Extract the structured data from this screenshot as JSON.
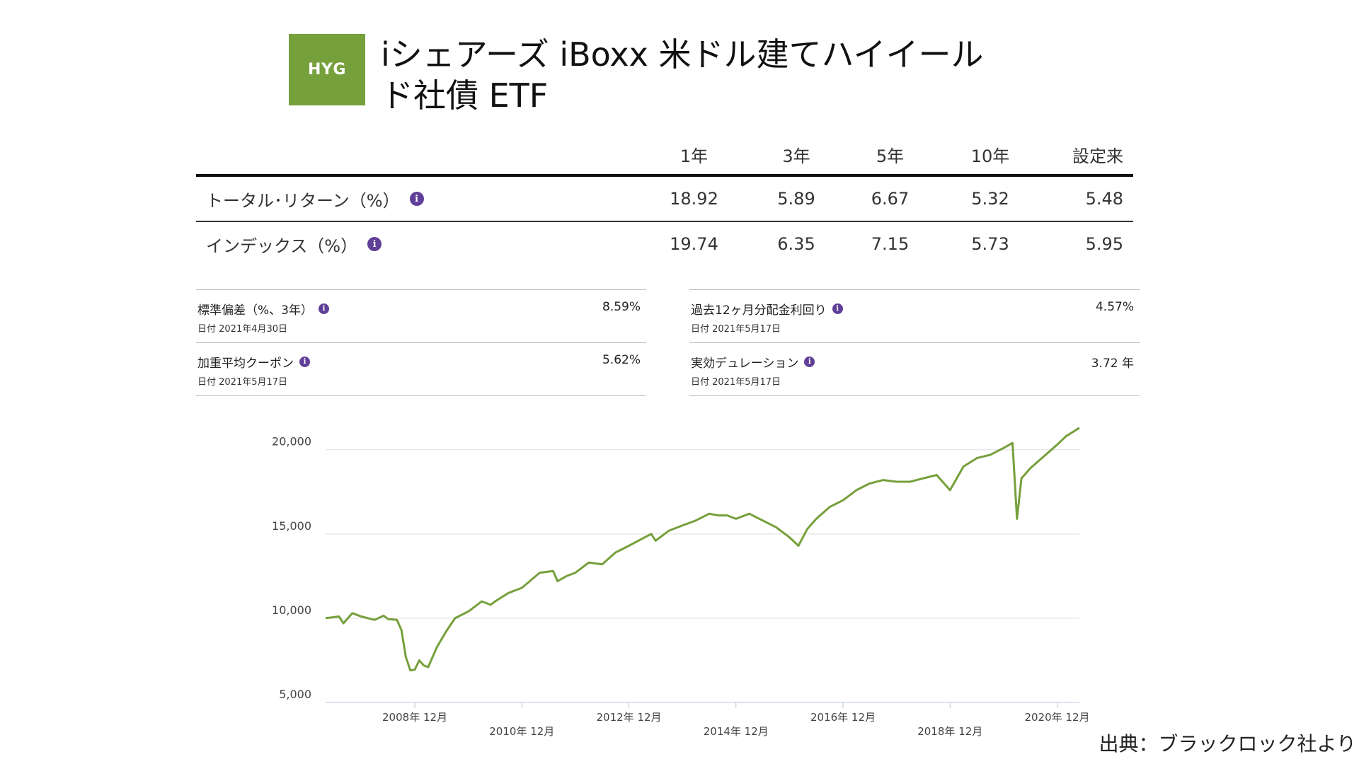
{
  "fund": {
    "ticker": "HYG",
    "title": "iシェアーズ iBoxx 米ドル建てハイイールド社債 ETF",
    "brand_color": "#76a03c"
  },
  "performance": {
    "headers": [
      "1年",
      "3年",
      "5年",
      "10年",
      "設定来"
    ],
    "rows": [
      {
        "label": "トータル･リターン（%）",
        "values": [
          "18.92",
          "5.89",
          "6.67",
          "5.32",
          "5.48"
        ]
      },
      {
        "label": "インデックス（%）",
        "values": [
          "19.74",
          "6.35",
          "7.15",
          "5.73",
          "5.95"
        ]
      }
    ],
    "info_icon": "info-icon",
    "info_color": "#5f3f97"
  },
  "stats": {
    "left": [
      {
        "label": "標準偏差（%、3年）",
        "date": "日付 2021年4月30日",
        "value": "8.59%"
      },
      {
        "label": "加重平均クーポン",
        "date": "日付 2021年5月17日",
        "value": "5.62%"
      }
    ],
    "right": [
      {
        "label": "過去12ヶ月分配金利回り",
        "date": "日付 2021年5月17日",
        "value": "4.57%"
      },
      {
        "label": "実効デュレーション",
        "date": "日付 2021年5月17日",
        "value": "3.72 年"
      }
    ]
  },
  "chart_data": {
    "type": "line",
    "title": "",
    "xlabel": "",
    "ylabel": "",
    "ylim": [
      5000,
      21500
    ],
    "y_ticks": [
      5000,
      10000,
      15000,
      20000
    ],
    "y_tick_labels": [
      "5,000",
      "10,000",
      "15,000",
      "20,000"
    ],
    "x_range": [
      "2007-04",
      "2021-05"
    ],
    "x_ticks": [
      "2008-12",
      "2010-12",
      "2012-12",
      "2014-12",
      "2016-12",
      "2018-12",
      "2020-12"
    ],
    "x_tick_labels": [
      "2008年 12月",
      "2010年 12月",
      "2012年 12月",
      "2014年 12月",
      "2016年 12月",
      "2018年 12月",
      "2020年 12月"
    ],
    "grid": true,
    "line_color": "#76a03c",
    "series": [
      {
        "x": [
          "2007-04",
          "2007-07",
          "2007-08",
          "2007-10",
          "2007-12",
          "2008-03",
          "2008-05",
          "2008-06",
          "2008-08",
          "2008-09",
          "2008-10",
          "2008-11",
          "2008-12",
          "2009-01",
          "2009-02",
          "2009-03",
          "2009-05",
          "2009-07",
          "2009-09",
          "2009-12",
          "2010-03",
          "2010-05",
          "2010-06",
          "2010-09",
          "2010-12",
          "2011-04",
          "2011-07",
          "2011-08",
          "2011-10",
          "2011-12",
          "2012-03",
          "2012-06",
          "2012-09",
          "2012-12",
          "2013-05",
          "2013-06",
          "2013-09",
          "2013-12",
          "2014-03",
          "2014-06",
          "2014-08",
          "2014-10",
          "2014-12",
          "2015-03",
          "2015-06",
          "2015-09",
          "2015-12",
          "2016-02",
          "2016-04",
          "2016-06",
          "2016-09",
          "2016-12",
          "2017-03",
          "2017-06",
          "2017-09",
          "2017-12",
          "2018-03",
          "2018-06",
          "2018-09",
          "2018-12",
          "2019-03",
          "2019-06",
          "2019-09",
          "2019-12",
          "2020-02",
          "2020-03",
          "2020-04",
          "2020-06",
          "2020-09",
          "2020-12",
          "2021-02",
          "2021-05"
        ],
        "values": [
          10000,
          10100,
          9700,
          10300,
          10100,
          9900,
          10150,
          9950,
          9900,
          9300,
          7700,
          6900,
          6950,
          7500,
          7200,
          7100,
          8300,
          9200,
          10000,
          10400,
          11000,
          10800,
          11000,
          11500,
          11800,
          12700,
          12800,
          12200,
          12500,
          12700,
          13300,
          13200,
          13900,
          14300,
          15000,
          14600,
          15200,
          15500,
          15800,
          16200,
          16100,
          16100,
          15900,
          16200,
          15800,
          15400,
          14800,
          14300,
          15300,
          15900,
          16600,
          17000,
          17600,
          18000,
          18200,
          18100,
          18100,
          18300,
          18500,
          17600,
          19000,
          19500,
          19700,
          20100,
          20400,
          15900,
          18300,
          18900,
          19600,
          20300,
          20800,
          21300
        ]
      }
    ]
  },
  "source": "出典：ブラックロック社より"
}
